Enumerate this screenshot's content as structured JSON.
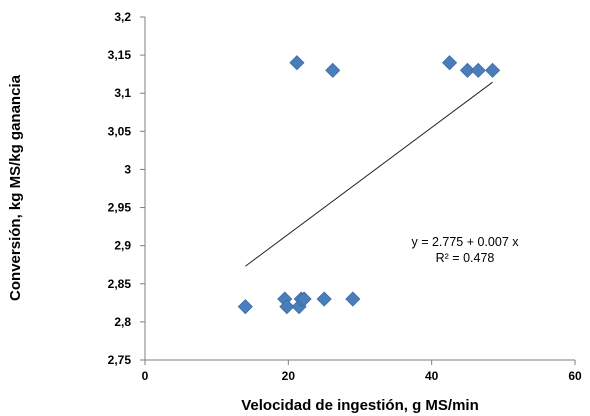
{
  "chart_data": {
    "type": "scatter",
    "xlabel": "Velocidad de ingestión, g MS/min",
    "ylabel": "Conversión, kg MS/kg ganancia",
    "xlim": [
      0,
      60
    ],
    "ylim": [
      2.75,
      3.2
    ],
    "x_ticks": [
      "0",
      "20",
      "40",
      "60"
    ],
    "y_ticks": [
      "2,75",
      "2,8",
      "2,85",
      "2,9",
      "2,95",
      "3",
      "3,05",
      "3,1",
      "3,15",
      "3,2"
    ],
    "points": [
      {
        "x": 14,
        "y": 2.82
      },
      {
        "x": 19.5,
        "y": 2.83
      },
      {
        "x": 19.8,
        "y": 2.82
      },
      {
        "x": 21.5,
        "y": 2.82
      },
      {
        "x": 21.8,
        "y": 2.83
      },
      {
        "x": 22.2,
        "y": 2.83
      },
      {
        "x": 25,
        "y": 2.83
      },
      {
        "x": 29,
        "y": 2.83
      },
      {
        "x": 21.2,
        "y": 3.14
      },
      {
        "x": 26.2,
        "y": 3.13
      },
      {
        "x": 42.5,
        "y": 3.14
      },
      {
        "x": 45,
        "y": 3.13
      },
      {
        "x": 46.5,
        "y": 3.13
      },
      {
        "x": 48.5,
        "y": 3.13
      }
    ],
    "trendline": {
      "x_range": [
        14,
        48.5
      ],
      "equation": "y = 2.775 + 0.007 x",
      "r2": "R² = 0.478"
    },
    "marker_color": "#4a7ebb",
    "grid": false,
    "legend": "none"
  }
}
